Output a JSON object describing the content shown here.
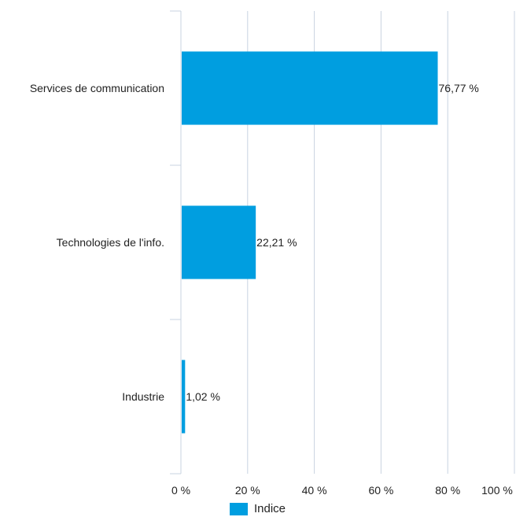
{
  "chart_data": {
    "type": "bar",
    "orientation": "horizontal",
    "categories": [
      "Services de communication",
      "Technologies de l'info.",
      "Industrie"
    ],
    "series": [
      {
        "name": "Indice",
        "values": [
          76.77,
          22.21,
          1.02
        ],
        "color": "#009ee0"
      }
    ],
    "data_labels": [
      "76,77 %",
      "22,21 %",
      "1,02 %"
    ],
    "x_ticks": [
      "0 %",
      "20 %",
      "40 %",
      "60 %",
      "80 %",
      "100 %"
    ],
    "xlim": [
      0,
      100
    ],
    "grid": true,
    "legend_position": "bottom"
  }
}
